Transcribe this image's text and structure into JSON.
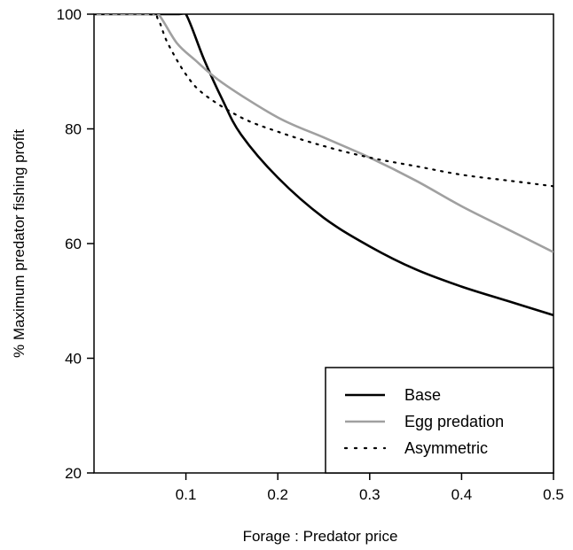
{
  "chart_data": {
    "type": "line",
    "title": "",
    "xlabel": "Forage : Predator price",
    "ylabel": "% Maximum predator fishing profit",
    "xlim": [
      0.0,
      0.5
    ],
    "ylim": [
      20,
      100
    ],
    "x_ticks": [
      0.1,
      0.2,
      0.3,
      0.4,
      0.5
    ],
    "y_ticks": [
      20,
      40,
      60,
      80,
      100
    ],
    "x_tick_labels": [
      "0.1",
      "0.2",
      "0.3",
      "0.4",
      "0.5"
    ],
    "y_tick_labels": [
      "20",
      "40",
      "60",
      "80",
      "100"
    ],
    "grid": false,
    "legend_position": "bottom-right",
    "series": [
      {
        "name": "Base",
        "color": "#000000",
        "style": "solid",
        "x": [
          0.0,
          0.09,
          0.1,
          0.12,
          0.14,
          0.16,
          0.2,
          0.25,
          0.3,
          0.35,
          0.4,
          0.45,
          0.5
        ],
        "y": [
          100,
          100,
          100,
          92,
          85,
          79,
          71.5,
          64.5,
          59.5,
          55.5,
          52.5,
          50,
          47.5
        ]
      },
      {
        "name": "Egg predation",
        "color": "#a0a0a0",
        "style": "solid",
        "x": [
          0.0,
          0.06,
          0.07,
          0.09,
          0.11,
          0.14,
          0.2,
          0.25,
          0.3,
          0.35,
          0.4,
          0.45,
          0.5
        ],
        "y": [
          100,
          100,
          100,
          95,
          92,
          88,
          82,
          78.5,
          75,
          71,
          66.5,
          62.5,
          58.5
        ]
      },
      {
        "name": "Asymmetric",
        "color": "#000000",
        "style": "dotted",
        "x": [
          0.0,
          0.06,
          0.07,
          0.08,
          0.1,
          0.12,
          0.16,
          0.2,
          0.25,
          0.3,
          0.35,
          0.4,
          0.45,
          0.5
        ],
        "y": [
          100,
          100,
          99,
          95,
          89.5,
          86,
          82,
          79.5,
          77,
          75,
          73.5,
          72,
          71,
          70
        ]
      }
    ]
  }
}
